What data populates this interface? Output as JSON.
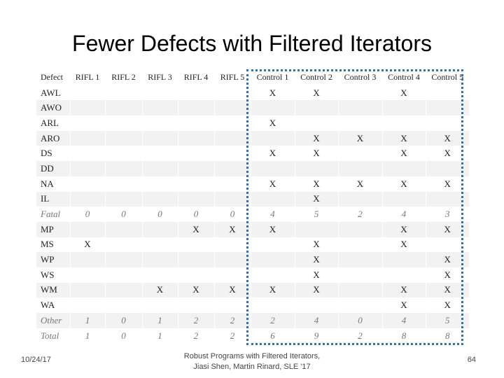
{
  "slide": {
    "title": "Fewer Defects with Filtered Iterators",
    "date": "10/24/17",
    "credit_line1": "Robust Programs with Filtered Iterators,",
    "credit_line2": "Jiasi Shen, Martin Rinard, SLE '17",
    "page_number": "64"
  },
  "table": {
    "columns": [
      "Defect",
      "RIFL 1",
      "RIFL 2",
      "RIFL 3",
      "RIFL 4",
      "RIFL 5",
      "Control 1",
      "Control 2",
      "Control 3",
      "Control 4",
      "Control 5"
    ],
    "rows": [
      [
        "AWL",
        "",
        "",
        "",
        "",
        "",
        "X",
        "X",
        "",
        "X",
        ""
      ],
      [
        "AWO",
        "",
        "",
        "",
        "",
        "",
        "",
        "",
        "",
        "",
        ""
      ],
      [
        "ARL",
        "",
        "",
        "",
        "",
        "",
        "X",
        "",
        "",
        "",
        ""
      ],
      [
        "ARO",
        "",
        "",
        "",
        "",
        "",
        "",
        "X",
        "X",
        "X",
        "X"
      ],
      [
        "DS",
        "",
        "",
        "",
        "",
        "",
        "X",
        "X",
        "",
        "X",
        "X"
      ],
      [
        "DD",
        "",
        "",
        "",
        "",
        "",
        "",
        "",
        "",
        "",
        ""
      ],
      [
        "NA",
        "",
        "",
        "",
        "",
        "",
        "X",
        "X",
        "X",
        "X",
        "X"
      ],
      [
        "IL",
        "",
        "",
        "",
        "",
        "",
        "",
        "X",
        "",
        "",
        ""
      ],
      [
        "Fatal",
        "0",
        "0",
        "0",
        "0",
        "0",
        "4",
        "5",
        "2",
        "4",
        "3"
      ],
      [
        "MP",
        "",
        "",
        "",
        "X",
        "X",
        "X",
        "",
        "",
        "X",
        "X"
      ],
      [
        "MS",
        "X",
        "",
        "",
        "",
        "",
        "",
        "X",
        "",
        "X",
        ""
      ],
      [
        "WP",
        "",
        "",
        "",
        "",
        "",
        "",
        "X",
        "",
        "",
        "X"
      ],
      [
        "WS",
        "",
        "",
        "",
        "",
        "",
        "",
        "X",
        "",
        "",
        "X"
      ],
      [
        "WM",
        "",
        "",
        "X",
        "X",
        "X",
        "X",
        "X",
        "",
        "X",
        "X"
      ],
      [
        "WA",
        "",
        "",
        "",
        "",
        "",
        "",
        "",
        "",
        "X",
        "X"
      ],
      [
        "Other",
        "1",
        "0",
        "1",
        "2",
        "2",
        "2",
        "4",
        "0",
        "4",
        "5"
      ],
      [
        "Total",
        "1",
        "0",
        "1",
        "2",
        "2",
        "6",
        "9",
        "2",
        "8",
        "8"
      ]
    ],
    "italic_rows": [
      "Fatal",
      "Other",
      "Total"
    ],
    "highlight_color": "#2f6fb5"
  }
}
